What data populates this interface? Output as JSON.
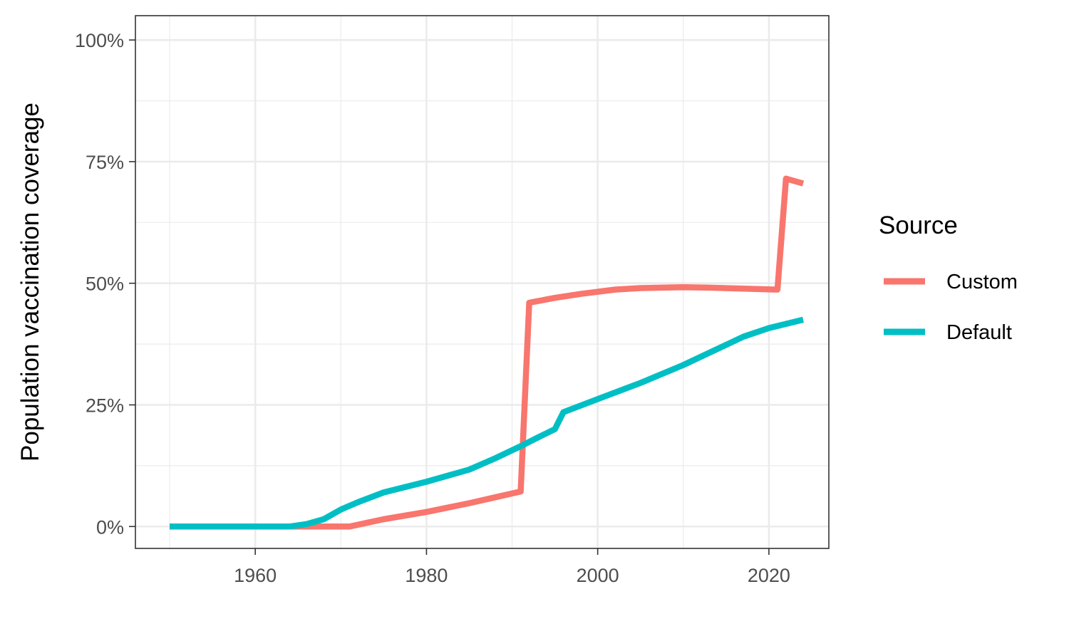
{
  "chart_data": {
    "type": "line",
    "title": "",
    "xlabel": "",
    "ylabel": "Population vaccination coverage",
    "xlim": [
      1946,
      2027
    ],
    "ylim": [
      -4.5,
      105
    ],
    "x_ticks": [
      1960,
      1980,
      2000,
      2020
    ],
    "x_tick_labels": [
      "1960",
      "1980",
      "2000",
      "2020"
    ],
    "y_ticks": [
      0,
      25,
      50,
      75,
      100
    ],
    "y_tick_labels": [
      "0%",
      "25%",
      "50%",
      "75%",
      "100%"
    ],
    "grid": true,
    "legend_title": "Source",
    "legend_position": "right",
    "series": [
      {
        "name": "Custom",
        "color": "#F8766D",
        "points": [
          [
            1950,
            0
          ],
          [
            1960,
            0
          ],
          [
            1970,
            0
          ],
          [
            1971,
            0
          ],
          [
            1975,
            1.5
          ],
          [
            1980,
            3
          ],
          [
            1985,
            4.8
          ],
          [
            1988,
            6
          ],
          [
            1991,
            7.2
          ],
          [
            1992,
            46
          ],
          [
            1995,
            47
          ],
          [
            1998,
            47.8
          ],
          [
            2002,
            48.7
          ],
          [
            2005,
            49
          ],
          [
            2010,
            49.2
          ],
          [
            2013,
            49.1
          ],
          [
            2017,
            48.9
          ],
          [
            2021,
            48.7
          ],
          [
            2022,
            71.5
          ],
          [
            2024,
            70.5
          ]
        ]
      },
      {
        "name": "Default",
        "color": "#00BFC4",
        "points": [
          [
            1950,
            0
          ],
          [
            1955,
            0
          ],
          [
            1960,
            0
          ],
          [
            1964,
            0
          ],
          [
            1966,
            0.5
          ],
          [
            1968,
            1.5
          ],
          [
            1970,
            3.5
          ],
          [
            1972,
            5
          ],
          [
            1975,
            7
          ],
          [
            1980,
            9.2
          ],
          [
            1985,
            11.7
          ],
          [
            1988,
            14
          ],
          [
            1991,
            16.5
          ],
          [
            1993,
            18.3
          ],
          [
            1995,
            20
          ],
          [
            1996,
            23.5
          ],
          [
            2000,
            26.2
          ],
          [
            2005,
            29.5
          ],
          [
            2010,
            33.2
          ],
          [
            2014,
            36.5
          ],
          [
            2017,
            39
          ],
          [
            2020,
            40.8
          ],
          [
            2024,
            42.5
          ]
        ]
      }
    ]
  }
}
